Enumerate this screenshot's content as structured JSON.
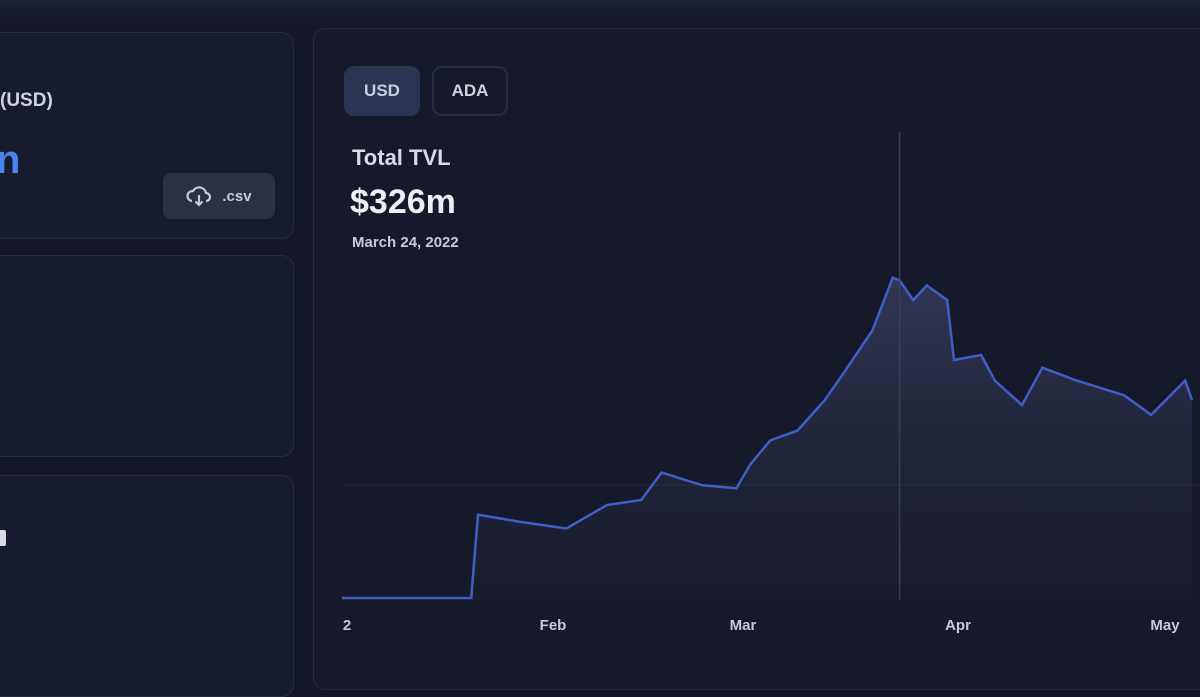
{
  "left": {
    "tvl_label": "(USD)",
    "tvl_value_fragment": "n",
    "csv_button": ".csv",
    "csv_icon": "cloud-download-icon"
  },
  "main": {
    "toggles": [
      {
        "label": "USD",
        "active": true
      },
      {
        "label": "ADA",
        "active": false
      }
    ],
    "title": "Total TVL",
    "value": "$326m",
    "date": "March 24, 2022"
  },
  "colors": {
    "line": "#3f5fc8",
    "background": "#141726",
    "accent": "#4a84ee"
  },
  "chart_data": {
    "type": "area",
    "x_ticks": [
      "2",
      "Feb",
      "Mar",
      "Apr",
      "May"
    ],
    "hover_date": "2022-03-24",
    "ylabel": "",
    "xlabel": "",
    "unit": "USD millions",
    "points": [
      [
        "2022-01-01",
        2
      ],
      [
        "2022-01-20",
        2
      ],
      [
        "2022-01-21",
        87
      ],
      [
        "2022-01-27",
        80
      ],
      [
        "2022-02-03",
        73
      ],
      [
        "2022-02-09",
        97
      ],
      [
        "2022-02-14",
        102
      ],
      [
        "2022-02-17",
        130
      ],
      [
        "2022-02-23",
        117
      ],
      [
        "2022-02-28",
        114
      ],
      [
        "2022-03-02",
        138
      ],
      [
        "2022-03-05",
        163
      ],
      [
        "2022-03-09",
        173
      ],
      [
        "2022-03-13",
        204
      ],
      [
        "2022-03-16",
        234
      ],
      [
        "2022-03-20",
        275
      ],
      [
        "2022-03-23",
        329
      ],
      [
        "2022-03-24",
        326
      ],
      [
        "2022-03-26",
        306
      ],
      [
        "2022-03-28",
        321
      ],
      [
        "2022-03-31",
        306
      ],
      [
        "2022-04-01",
        245
      ],
      [
        "2022-04-05",
        250
      ],
      [
        "2022-04-07",
        224
      ],
      [
        "2022-04-11",
        199
      ],
      [
        "2022-04-14",
        237
      ],
      [
        "2022-04-19",
        224
      ],
      [
        "2022-04-26",
        209
      ],
      [
        "2022-04-30",
        189
      ],
      [
        "2022-05-05",
        224
      ],
      [
        "2022-05-06",
        204
      ]
    ]
  }
}
